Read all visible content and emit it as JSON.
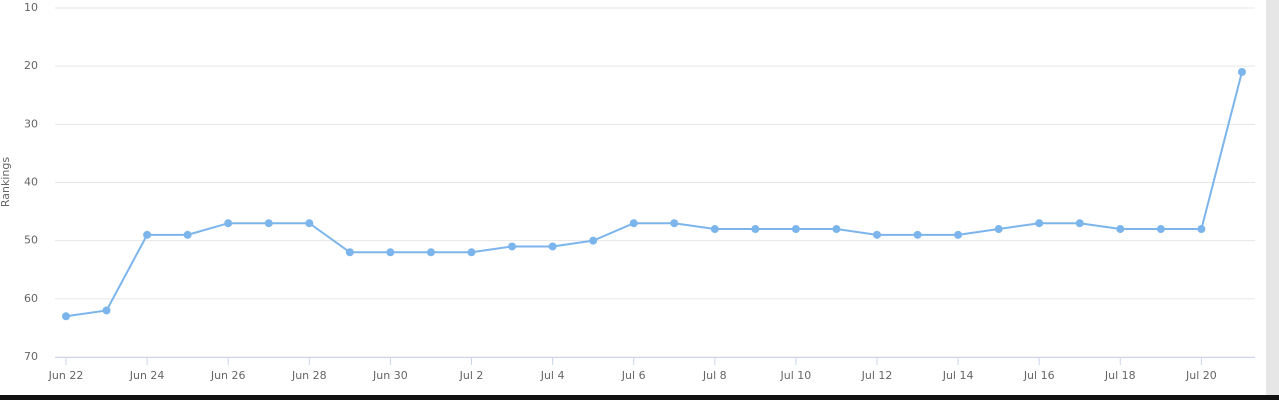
{
  "chart_data": {
    "type": "line",
    "y_axis_label": "Rankings",
    "categories": [
      "Jun 22",
      null,
      "Jun 24",
      null,
      "Jun 26",
      null,
      "Jun 28",
      null,
      "Jun 30",
      null,
      "Jul 2",
      null,
      "Jul 4",
      null,
      "Jul 6",
      null,
      "Jul 8",
      null,
      "Jul 10",
      null,
      "Jul 12",
      null,
      "Jul 14",
      null,
      "Jul 16",
      null,
      "Jul 18",
      null,
      "Jul 20",
      null
    ],
    "values": [
      63,
      62,
      49,
      49,
      47,
      47,
      47,
      52,
      52,
      52,
      52,
      51,
      51,
      50,
      47,
      47,
      48,
      48,
      48,
      48,
      49,
      49,
      49,
      48,
      47,
      47,
      48,
      48,
      48,
      21
    ],
    "color": "#7cb5ec",
    "ylim": [
      70,
      10
    ],
    "yticks": [
      10,
      20,
      30,
      40,
      50,
      60,
      70
    ],
    "grid": true
  }
}
